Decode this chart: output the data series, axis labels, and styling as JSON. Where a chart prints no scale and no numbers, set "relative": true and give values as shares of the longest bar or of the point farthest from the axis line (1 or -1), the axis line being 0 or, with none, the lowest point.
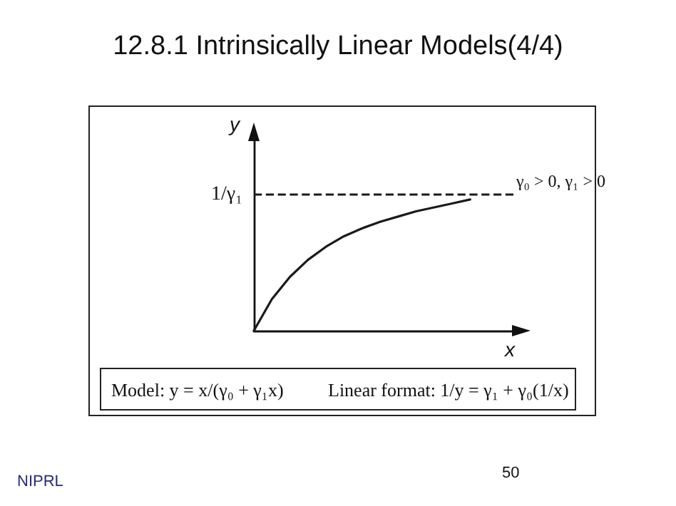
{
  "chart_data": {
    "type": "line",
    "title": "12.8.1 Intrinsically Linear Models(4/4)",
    "xlabel": "x",
    "ylabel": "y",
    "relative": true,
    "categories": [
      null,
      null,
      null,
      null,
      null,
      null,
      null,
      null,
      null,
      null,
      null,
      null,
      null
    ],
    "series": [
      {
        "color": "#1a1a1a",
        "values": [
          0,
          0.24,
          0.41,
          0.54,
          0.64,
          0.72,
          0.78,
          0.83,
          0.87,
          0.91,
          0.94,
          0.97,
          1
        ]
      }
    ],
    "ref_lines": [
      {
        "axis": "y",
        "value": 1.04,
        "label": "1/γ₁",
        "line_style": "dashed",
        "color": "#1a1a1a"
      }
    ],
    "annotations": [
      "γ₀ > 0, γ₁ > 0",
      "Model: y = x/(γ₀ + γ₁x)",
      "Linear format: 1/y = γ₁ + γ₀(1/x)",
      "NIPRL",
      "50"
    ],
    "grid": false,
    "marker": "none",
    "line_style": "solid"
  }
}
